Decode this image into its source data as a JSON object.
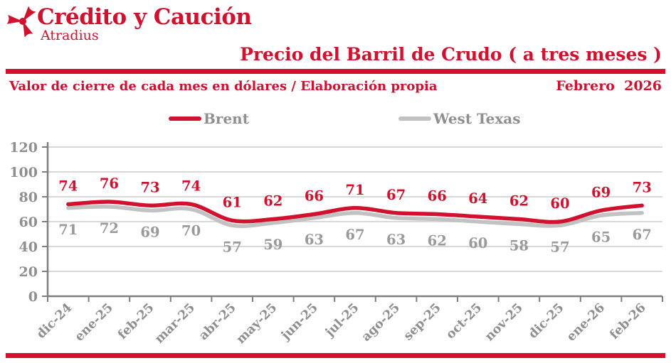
{
  "brand": {
    "name": "Crédito y Caución",
    "subtitle": "Atradius"
  },
  "header": {
    "title": "Precio del Barril de Crudo ( a tres meses )",
    "subtitle": "Valor de cierre de cada mes en dólares / Elaboración propia",
    "date": "Febrero  2026"
  },
  "colors": {
    "red": "#D2112E",
    "gray_line": "#C2C2C2",
    "gray_text": "#8F8F8F",
    "gray_data_label": "#9A9A9A",
    "axis": "#7F7F7F",
    "grid": "#D8D8D8"
  },
  "chart_data": {
    "type": "line",
    "title": "Precio del Barril de Crudo ( a tres meses )",
    "xlabel": "",
    "ylabel": "",
    "categories": [
      "dic-24",
      "ene-25",
      "feb-25",
      "mar-25",
      "abr-25",
      "may-25",
      "jun-25",
      "jul-25",
      "ago-25",
      "sep-25",
      "oct-25",
      "nov-25",
      "dic-25",
      "ene-26",
      "feb-26"
    ],
    "series": [
      {
        "name": "Brent",
        "color": "#D2112E",
        "values": [
          74,
          76,
          73,
          74,
          61,
          62,
          66,
          71,
          67,
          66,
          64,
          62,
          60,
          69,
          73
        ]
      },
      {
        "name": "West Texas",
        "color": "#C2C2C2",
        "values": [
          71,
          72,
          69,
          70,
          57,
          59,
          63,
          67,
          63,
          62,
          60,
          58,
          57,
          65,
          67
        ]
      }
    ],
    "ylim": [
      0,
      120
    ],
    "yticks": [
      0,
      20,
      40,
      60,
      80,
      100,
      120
    ],
    "grid": true,
    "legend_position": "top",
    "data_labels": true
  }
}
